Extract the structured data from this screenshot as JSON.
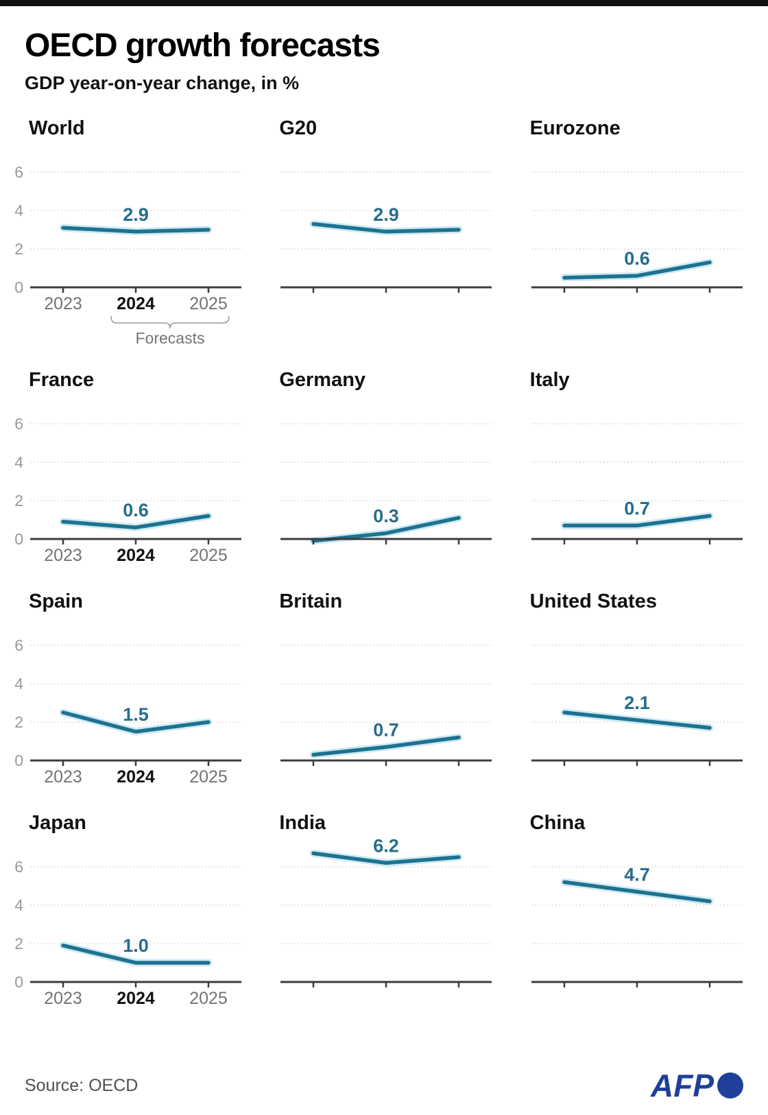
{
  "header": {
    "title": "OECD growth forecasts",
    "subtitle": "GDP year-on-year change, in %"
  },
  "footer": {
    "source": "Source: OECD",
    "logo_text": "AFP"
  },
  "axis": {
    "x_categories": [
      "2023",
      "2024",
      "2025"
    ],
    "bold_category": "2024",
    "forecast_label": "Forecasts",
    "y_ticks": [
      0,
      2,
      4,
      6
    ],
    "y_max": 7,
    "grid": "on",
    "legend_position": "none"
  },
  "colors": {
    "line": "#1e7291",
    "line_halo": "#cfeaf2",
    "value_label": "#256e8d",
    "grid": "#d8d8d8",
    "axis_line": "#3c3c3c",
    "brace": "#9a9a9a",
    "y_tick_text": "#999999",
    "x_tick_text": "#737373",
    "x_tick_bold_text": "#111111",
    "source_text": "#4f4f4f",
    "afp_blue": "#1e409a",
    "top_bar": "#111111"
  },
  "chart_data": [
    {
      "type": "line",
      "title": "World",
      "x": [
        "2023",
        "2024",
        "2025"
      ],
      "values": [
        3.1,
        2.9,
        3.0
      ],
      "value_label": "2.9",
      "ylim": [
        0,
        7
      ],
      "show_y_axis": true,
      "show_x_labels": true,
      "show_forecast_brace": true
    },
    {
      "type": "line",
      "title": "G20",
      "x": [
        "2023",
        "2024",
        "2025"
      ],
      "values": [
        3.3,
        2.9,
        3.0
      ],
      "value_label": "2.9",
      "ylim": [
        0,
        7
      ],
      "show_y_axis": false,
      "show_x_labels": false,
      "show_forecast_brace": false
    },
    {
      "type": "line",
      "title": "Eurozone",
      "x": [
        "2023",
        "2024",
        "2025"
      ],
      "values": [
        0.5,
        0.6,
        1.3
      ],
      "value_label": "0.6",
      "ylim": [
        0,
        7
      ],
      "show_y_axis": false,
      "show_x_labels": false,
      "show_forecast_brace": false
    },
    {
      "type": "line",
      "title": "France",
      "x": [
        "2023",
        "2024",
        "2025"
      ],
      "values": [
        0.9,
        0.6,
        1.2
      ],
      "value_label": "0.6",
      "ylim": [
        0,
        7
      ],
      "show_y_axis": true,
      "show_x_labels": true,
      "show_forecast_brace": false
    },
    {
      "type": "line",
      "title": "Germany",
      "x": [
        "2023",
        "2024",
        "2025"
      ],
      "values": [
        -0.1,
        0.3,
        1.1
      ],
      "value_label": "0.3",
      "ylim": [
        0,
        7
      ],
      "show_y_axis": false,
      "show_x_labels": false,
      "show_forecast_brace": false
    },
    {
      "type": "line",
      "title": "Italy",
      "x": [
        "2023",
        "2024",
        "2025"
      ],
      "values": [
        0.7,
        0.7,
        1.2
      ],
      "value_label": "0.7",
      "ylim": [
        0,
        7
      ],
      "show_y_axis": false,
      "show_x_labels": false,
      "show_forecast_brace": false
    },
    {
      "type": "line",
      "title": "Spain",
      "x": [
        "2023",
        "2024",
        "2025"
      ],
      "values": [
        2.5,
        1.5,
        2.0
      ],
      "value_label": "1.5",
      "ylim": [
        0,
        7
      ],
      "show_y_axis": true,
      "show_x_labels": true,
      "show_forecast_brace": false
    },
    {
      "type": "line",
      "title": "Britain",
      "x": [
        "2023",
        "2024",
        "2025"
      ],
      "values": [
        0.3,
        0.7,
        1.2
      ],
      "value_label": "0.7",
      "ylim": [
        0,
        7
      ],
      "show_y_axis": false,
      "show_x_labels": false,
      "show_forecast_brace": false
    },
    {
      "type": "line",
      "title": "United States",
      "x": [
        "2023",
        "2024",
        "2025"
      ],
      "values": [
        2.5,
        2.1,
        1.7
      ],
      "value_label": "2.1",
      "ylim": [
        0,
        7
      ],
      "show_y_axis": false,
      "show_x_labels": false,
      "show_forecast_brace": false
    },
    {
      "type": "line",
      "title": "Japan",
      "x": [
        "2023",
        "2024",
        "2025"
      ],
      "values": [
        1.9,
        1.0,
        1.0
      ],
      "value_label": "1.0",
      "ylim": [
        0,
        7
      ],
      "show_y_axis": true,
      "show_x_labels": true,
      "show_forecast_brace": false
    },
    {
      "type": "line",
      "title": "India",
      "x": [
        "2023",
        "2024",
        "2025"
      ],
      "values": [
        6.7,
        6.2,
        6.5
      ],
      "value_label": "6.2",
      "ylim": [
        0,
        7
      ],
      "show_y_axis": false,
      "show_x_labels": false,
      "show_forecast_brace": false
    },
    {
      "type": "line",
      "title": "China",
      "x": [
        "2023",
        "2024",
        "2025"
      ],
      "values": [
        5.2,
        4.7,
        4.2
      ],
      "value_label": "4.7",
      "ylim": [
        0,
        7
      ],
      "show_y_axis": false,
      "show_x_labels": false,
      "show_forecast_brace": false
    }
  ]
}
